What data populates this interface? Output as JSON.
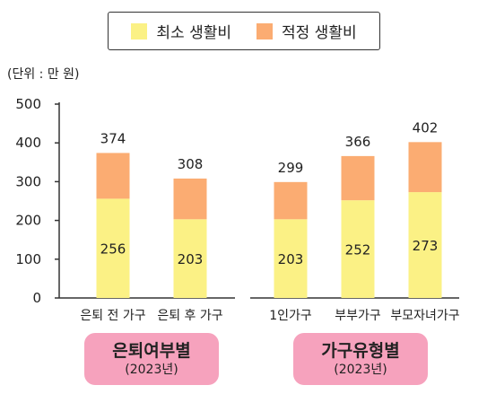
{
  "chart_data": {
    "type": "bar",
    "stacked": true,
    "unit_label": "(단위 : 만 원)",
    "categories": [
      "은퇴 전 가구",
      "은퇴 후 가구",
      "1인가구",
      "부부가구",
      "부모자녀가구"
    ],
    "series": [
      {
        "name": "최소 생활비",
        "values": [
          256,
          203,
          203,
          252,
          273
        ],
        "color": "#fbf185"
      },
      {
        "name": "적정 생활비",
        "values": [
          118,
          105,
          96,
          114,
          129
        ],
        "color": "#fbac72"
      }
    ],
    "totals": [
      374,
      308,
      299,
      366,
      402
    ],
    "ylim": [
      0,
      500
    ],
    "yticks": [
      0,
      100,
      200,
      300,
      400,
      500
    ],
    "grid": false,
    "legend": "top-center",
    "groups": [
      {
        "title": "은퇴여부별",
        "subtitle": "(2023년)",
        "categories": [
          0,
          1
        ]
      },
      {
        "title": "가구유형별",
        "subtitle": "(2023년)",
        "categories": [
          2,
          3,
          4
        ]
      }
    ]
  },
  "colors": {
    "group_pill": "#f6a2bd",
    "axis": "#333333"
  }
}
